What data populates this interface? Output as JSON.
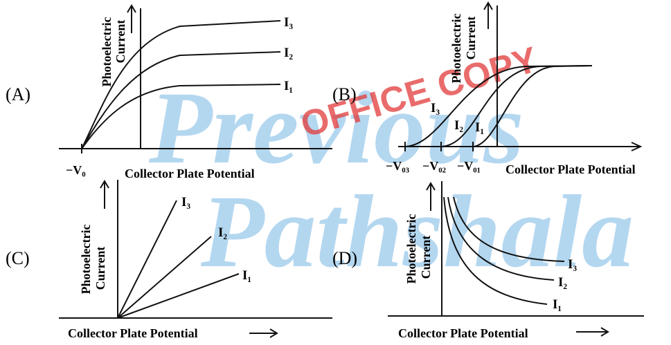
{
  "panels": [
    {
      "label": "(A)",
      "y_axis": [
        "Photoelectric",
        "Current"
      ],
      "x_axis": "Collector Plate Potential",
      "axis_marks": [
        "−V₀"
      ],
      "curves": [
        "I₃",
        "I₂",
        "I₁"
      ]
    },
    {
      "label": "(B)",
      "y_axis": [
        "Photoelectric",
        "Current"
      ],
      "x_axis": "Collector Plate Potential",
      "axis_marks": [
        "−V₀₃",
        "−V₀₂",
        "−V₀₁"
      ],
      "curves": [
        "I₃",
        "I₂",
        "I₁"
      ]
    },
    {
      "label": "(C)",
      "y_axis": [
        "Photoelectric",
        "Current"
      ],
      "x_axis": "Collector Plate Potential",
      "curves": [
        "I₃",
        "I₂",
        "I₁"
      ]
    },
    {
      "label": "(D)",
      "y_axis": [
        "Photoelectric",
        "Current"
      ],
      "x_axis": "Collector Plate Potential",
      "curves": [
        "I₃",
        "I₂",
        "I₁"
      ]
    }
  ],
  "watermark": {
    "stamp": "OFFICE COPY",
    "logo": [
      "Previous",
      "Pathshala"
    ]
  }
}
